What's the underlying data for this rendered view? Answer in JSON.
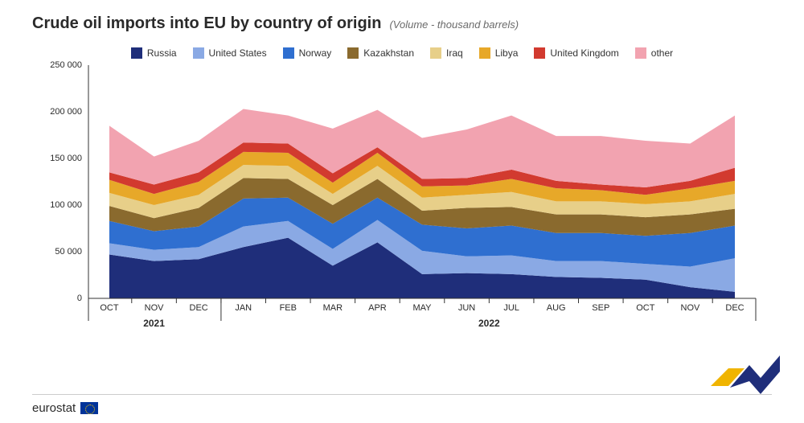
{
  "title": "Crude oil imports into EU by country of origin",
  "subtitle": "(Volume - thousand barrels)",
  "footer": {
    "brand": "eurostat"
  },
  "chart": {
    "type": "stacked-area",
    "ylim": [
      0,
      250000
    ],
    "ytick_step": 50000,
    "ytick_labels": [
      "0",
      "50 000",
      "100 000",
      "150 000",
      "200 000",
      "250 000"
    ],
    "background_color": "#ffffff",
    "axis_color": "#333333",
    "label_fontsize": 11,
    "title_fontsize": 20,
    "categories": [
      "OCT",
      "NOV",
      "DEC",
      "JAN",
      "FEB",
      "MAR",
      "APR",
      "MAY",
      "JUN",
      "JUL",
      "AUG",
      "SEP",
      "OCT",
      "NOV",
      "DEC"
    ],
    "year_groups": [
      {
        "label": "2021",
        "start": 0,
        "end": 2
      },
      {
        "label": "2022",
        "start": 3,
        "end": 14
      }
    ],
    "series": [
      {
        "name": "Russia",
        "color": "#1f2e7a",
        "values": [
          47000,
          40000,
          42000,
          55000,
          65000,
          35000,
          60000,
          26000,
          27000,
          26000,
          23000,
          22000,
          20000,
          12000,
          7000
        ]
      },
      {
        "name": "United States",
        "color": "#8aa9e4",
        "values": [
          12000,
          12000,
          13000,
          22000,
          18000,
          18000,
          24000,
          25000,
          18000,
          20000,
          17000,
          18000,
          17000,
          22000,
          36000
        ]
      },
      {
        "name": "Norway",
        "color": "#2f6fd0",
        "values": [
          24000,
          20000,
          22000,
          30000,
          25000,
          27000,
          24000,
          28000,
          30000,
          32000,
          30000,
          30000,
          30000,
          36000,
          35000
        ]
      },
      {
        "name": "Kazakhstan",
        "color": "#8a6a2e",
        "values": [
          16000,
          14000,
          20000,
          22000,
          20000,
          20000,
          20000,
          15000,
          22000,
          20000,
          20000,
          20000,
          20000,
          20000,
          18000
        ]
      },
      {
        "name": "Iraq",
        "color": "#e7cf89",
        "values": [
          14000,
          14000,
          14000,
          14000,
          14000,
          12000,
          14000,
          14000,
          14000,
          16000,
          14000,
          14000,
          14000,
          14000,
          16000
        ]
      },
      {
        "name": "Libya",
        "color": "#e7a829",
        "values": [
          14000,
          12000,
          14000,
          14000,
          14000,
          12000,
          14000,
          12000,
          10000,
          14000,
          14000,
          12000,
          10000,
          14000,
          14000
        ]
      },
      {
        "name": "United Kingdom",
        "color": "#d23a2f",
        "values": [
          8000,
          10000,
          10000,
          10000,
          10000,
          10000,
          6000,
          8000,
          8000,
          10000,
          8000,
          6000,
          8000,
          8000,
          14000
        ]
      },
      {
        "name": "other",
        "color": "#f2a3b0",
        "values": [
          50000,
          30000,
          34000,
          36000,
          30000,
          48000,
          40000,
          44000,
          52000,
          58000,
          48000,
          52000,
          50000,
          40000,
          56000
        ]
      }
    ]
  },
  "chevron_colors": {
    "yellow": "#f0b400",
    "blue": "#1f2e7a"
  }
}
